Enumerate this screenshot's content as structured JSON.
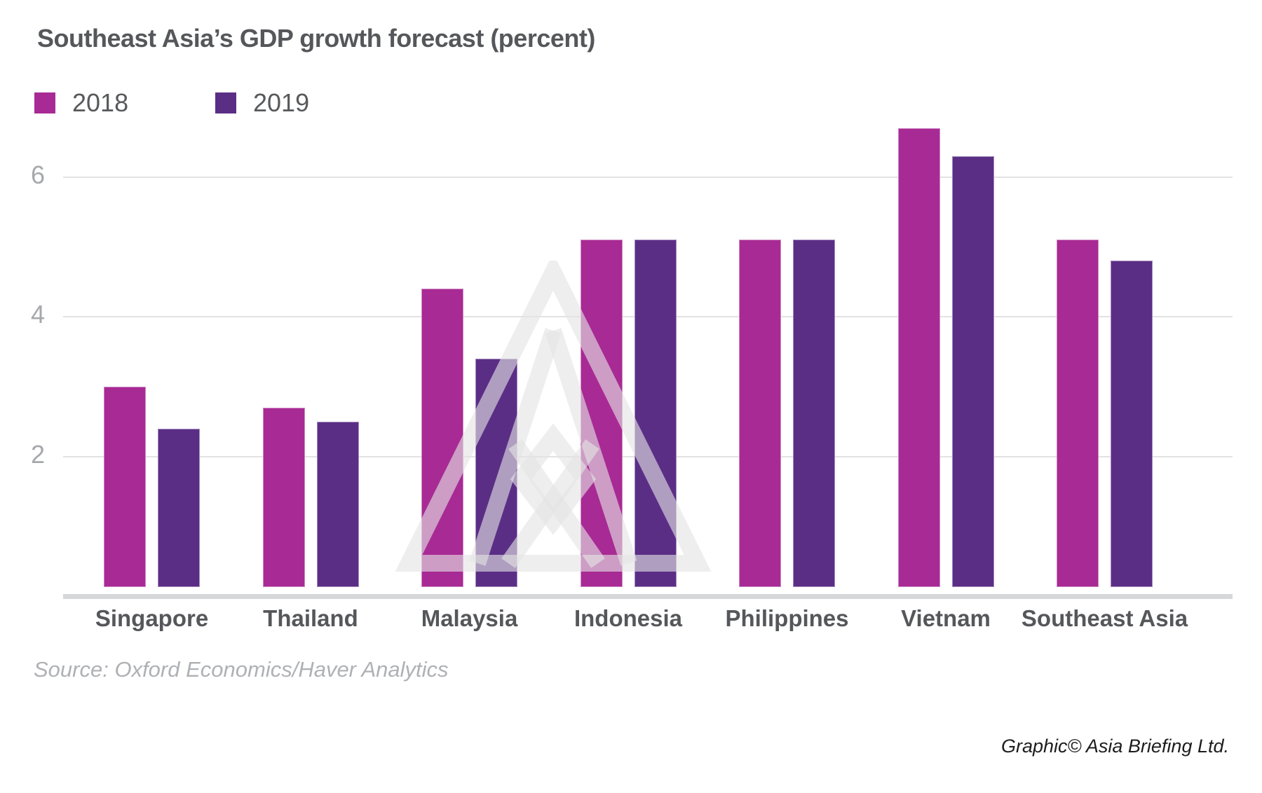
{
  "title": "Southeast Asia’s GDP growth forecast (percent)",
  "legend": [
    {
      "label": "2018"
    },
    {
      "label": "2019"
    }
  ],
  "source_note": "Source: Oxford Economics/Haver Analytics",
  "credit_note": "Graphic© Asia Briefing Ltd.",
  "colors": {
    "series_2018": "#a82a94",
    "series_2019": "#5b2e86",
    "gridline": "#e2e2e2",
    "axis_line": "#d6d7d8",
    "text_dark": "#55575a",
    "text_muted": "#a6a8ab"
  },
  "chart_data": {
    "type": "bar",
    "title": "Southeast Asia’s GDP growth forecast (percent)",
    "categories": [
      "Singapore",
      "Thailand",
      "Malaysia",
      "Indonesia",
      "Philippines",
      "Vietnam",
      "Southeast Asia"
    ],
    "series": [
      {
        "name": "2018",
        "color": "#a82a94",
        "values": [
          3.0,
          2.7,
          4.4,
          5.1,
          5.1,
          6.7,
          5.1
        ]
      },
      {
        "name": "2019",
        "color": "#5b2e86",
        "values": [
          2.4,
          2.5,
          3.4,
          5.1,
          5.1,
          6.3,
          4.8
        ]
      }
    ],
    "xlabel": "",
    "ylabel": "",
    "yticks": [
      2,
      4,
      6
    ],
    "ylim": [
      0,
      7
    ],
    "grid": true,
    "legend_position": "top-left"
  }
}
